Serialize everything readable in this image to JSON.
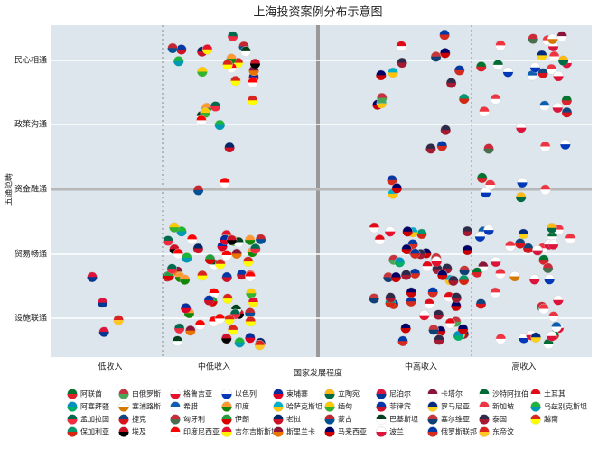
{
  "chart_data": {
    "type": "swarm",
    "title": "上海投资案例分布示意图",
    "x_label": "国家发展程度",
    "y_label": "五通范畴",
    "x_categories": [
      "低收入",
      "中低收入",
      "中高收入",
      "高收入"
    ],
    "y_categories": [
      "民心相通",
      "政策沟通",
      "资金融通",
      "贸易畅通",
      "设施联通"
    ],
    "legend": [
      {
        "name": "阿联酋",
        "colors": [
          "#00732f",
          "#e0202a"
        ]
      },
      {
        "name": "白俄罗斯",
        "colors": [
          "#c8313e",
          "#4aa657"
        ]
      },
      {
        "name": "格鲁吉亚",
        "colors": [
          "#ffffff",
          "#e8112d"
        ]
      },
      {
        "name": "以色列",
        "colors": [
          "#ffffff",
          "#0038b8"
        ]
      },
      {
        "name": "柬埔寨",
        "colors": [
          "#032ea1",
          "#e00025"
        ]
      },
      {
        "name": "立陶宛",
        "colors": [
          "#fdb913",
          "#006a44"
        ]
      },
      {
        "name": "尼泊尔",
        "colors": [
          "#dc143c",
          "#003893"
        ]
      },
      {
        "name": "卡塔尔",
        "colors": [
          "#8a1538",
          "#ffffff"
        ]
      },
      {
        "name": "沙特阿拉伯",
        "colors": [
          "#006c35",
          "#ffffff"
        ]
      },
      {
        "name": "土耳其",
        "colors": [
          "#e30a17",
          "#ffffff"
        ]
      },
      {
        "name": "阿塞拜疆",
        "colors": [
          "#0092bc",
          "#00af66"
        ]
      },
      {
        "name": "塞浦路斯",
        "colors": [
          "#ffffff",
          "#d57800"
        ]
      },
      {
        "name": "希腊",
        "colors": [
          "#0d5eaf",
          "#ffffff"
        ]
      },
      {
        "name": "印度",
        "colors": [
          "#ff9933",
          "#138808"
        ]
      },
      {
        "name": "哈萨克斯坦",
        "colors": [
          "#00afca",
          "#fec50c"
        ]
      },
      {
        "name": "缅甸",
        "colors": [
          "#fecb00",
          "#34b233"
        ]
      },
      {
        "name": "菲律宾",
        "colors": [
          "#0038a8",
          "#ce1126"
        ]
      },
      {
        "name": "罗马尼亚",
        "colors": [
          "#002b7f",
          "#fcd116"
        ]
      },
      {
        "name": "新加坡",
        "colors": [
          "#ef3340",
          "#ffffff"
        ]
      },
      {
        "name": "乌兹别克斯坦",
        "colors": [
          "#1eb53a",
          "#0099b5"
        ]
      },
      {
        "name": "孟加拉国",
        "colors": [
          "#006a4e",
          "#f42a41"
        ]
      },
      {
        "name": "捷克",
        "colors": [
          "#11457e",
          "#d7141a"
        ]
      },
      {
        "name": "匈牙利",
        "colors": [
          "#ce2939",
          "#477050"
        ]
      },
      {
        "name": "伊朗",
        "colors": [
          "#239f40",
          "#da0000"
        ]
      },
      {
        "name": "老挝",
        "colors": [
          "#002868",
          "#ce1126"
        ]
      },
      {
        "name": "蒙古",
        "colors": [
          "#c4272f",
          "#015197"
        ]
      },
      {
        "name": "巴基斯坦",
        "colors": [
          "#01411c",
          "#ffffff"
        ]
      },
      {
        "name": "塞尔维亚",
        "colors": [
          "#c6363c",
          "#0c4076"
        ]
      },
      {
        "name": "泰国",
        "colors": [
          "#2d2a4a",
          "#a51931"
        ]
      },
      {
        "name": "越南",
        "colors": [
          "#da251d",
          "#ffff00"
        ]
      },
      {
        "name": "保加利亚",
        "colors": [
          "#00966e",
          "#d62612"
        ]
      },
      {
        "name": "埃及",
        "colors": [
          "#ce1126",
          "#000000"
        ]
      },
      {
        "name": "印度尼西亚",
        "colors": [
          "#ff0000",
          "#ffffff"
        ]
      },
      {
        "name": "吉尔吉斯斯坦",
        "colors": [
          "#e8112d",
          "#ffef00"
        ]
      },
      {
        "name": "斯里兰卡",
        "colors": [
          "#8d153a",
          "#eb7400"
        ]
      },
      {
        "name": "马来西亚",
        "colors": [
          "#010066",
          "#cc0001"
        ]
      },
      {
        "name": "波兰",
        "colors": [
          "#ffffff",
          "#dc143c"
        ]
      },
      {
        "name": "俄罗斯联邦",
        "colors": [
          "#0039a6",
          "#d52b1e"
        ]
      },
      {
        "name": "东帝汶",
        "colors": [
          "#dc241f",
          "#ffc726"
        ]
      }
    ],
    "cells": [
      {
        "x": "低收入",
        "y": "贸易畅通",
        "countries": [
          "尼泊尔"
        ]
      },
      {
        "x": "低收入",
        "y": "设施联通",
        "countries": [
          "尼泊尔",
          "东帝汶",
          "尼泊尔"
        ]
      },
      {
        "x": "中低收入",
        "y": "民心相通",
        "countries": [
          "越南",
          "印度尼西亚",
          "蒙古",
          "缅甸",
          "孟加拉国",
          "印度",
          "柬埔寨",
          "乌兹别克斯坦",
          "斯里兰卡",
          "越南",
          "印度尼西亚",
          "老挝",
          "巴基斯坦",
          "菲律宾",
          "吉尔吉斯斯坦",
          "埃及",
          "越南",
          "蒙古"
        ]
      },
      {
        "x": "中低收入",
        "y": "政策沟通",
        "countries": [
          "乌兹别克斯坦",
          "印度",
          "越南",
          "巴基斯坦",
          "老挝",
          "孟加拉国",
          "缅甸",
          "印度尼西亚"
        ]
      },
      {
        "x": "中低收入",
        "y": "资金融通",
        "countries": [
          "蒙古",
          "印度尼西亚"
        ]
      },
      {
        "x": "中低收入",
        "y": "贸易畅通",
        "countries": [
          "印度",
          "越南",
          "印度尼西亚",
          "巴基斯坦",
          "孟加拉国",
          "缅甸",
          "柬埔寨",
          "老挝",
          "菲律宾",
          "斯里兰卡",
          "埃及",
          "乌兹别克斯坦",
          "蒙古",
          "吉尔吉斯斯坦",
          "伊朗",
          "印度",
          "越南",
          "印度尼西亚",
          "巴基斯坦",
          "孟加拉国",
          "缅甸",
          "柬埔寨",
          "斯里兰卡",
          "埃及",
          "印度",
          "越南",
          "印度尼西亚",
          "老挝",
          "菲律宾",
          "伊朗",
          "印度",
          "越南",
          "印度尼西亚",
          "乌兹别克斯坦",
          "孟加拉国"
        ]
      },
      {
        "x": "中低收入",
        "y": "设施联通",
        "countries": [
          "越南",
          "印度尼西亚",
          "巴基斯坦",
          "孟加拉国",
          "缅甸",
          "柬埔寨",
          "老挝",
          "埃及",
          "斯里兰卡",
          "蒙古",
          "印度",
          "越南",
          "印度尼西亚",
          "巴基斯坦",
          "孟加拉国",
          "柬埔寨",
          "东帝汶",
          "埃及",
          "吉尔吉斯斯坦",
          "越南",
          "印度尼西亚",
          "乌兹别克斯坦",
          "伊朗",
          "菲律宾",
          "越南",
          "印度尼西亚"
        ]
      },
      {
        "x": "中高收入",
        "y": "民心相通",
        "countries": [
          "马来西亚",
          "俄罗斯联邦",
          "泰国",
          "哈萨克斯坦",
          "土耳其",
          "塞尔维亚",
          "马来西亚",
          "泰国",
          "俄罗斯联邦"
        ]
      },
      {
        "x": "中高收入",
        "y": "政策沟通",
        "countries": [
          "保加利亚",
          "泰国",
          "俄罗斯联邦",
          "马来西亚",
          "哈萨克斯坦",
          "白俄罗斯",
          "泰国"
        ]
      },
      {
        "x": "中高收入",
        "y": "资金融通",
        "countries": [
          "俄罗斯联邦",
          "哈萨克斯坦",
          "马来西亚"
        ]
      },
      {
        "x": "中高收入",
        "y": "贸易畅通",
        "countries": [
          "马来西亚",
          "泰国",
          "俄罗斯联邦",
          "土耳其",
          "哈萨克斯坦",
          "塞尔维亚",
          "保加利亚",
          "白俄罗斯",
          "格鲁吉亚",
          "阿塞拜疆",
          "马来西亚",
          "泰国",
          "俄罗斯联邦",
          "土耳其",
          "哈萨克斯坦",
          "马来西亚",
          "泰国",
          "俄罗斯联邦",
          "塞尔维亚",
          "白俄罗斯",
          "马来西亚",
          "泰国",
          "土耳其",
          "格鲁吉亚",
          "马来西亚",
          "泰国",
          "俄罗斯联邦",
          "保加利亚",
          "马来西亚",
          "泰国"
        ]
      },
      {
        "x": "中高收入",
        "y": "设施联通",
        "countries": [
          "马来西亚",
          "泰国",
          "俄罗斯联邦",
          "土耳其",
          "哈萨克斯坦",
          "塞尔维亚",
          "格鲁吉亚",
          "白俄罗斯",
          "马来西亚",
          "泰国",
          "俄罗斯联邦",
          "土耳其",
          "阿塞拜疆",
          "马来西亚",
          "泰国",
          "俄罗斯联邦",
          "塞尔维亚",
          "马来西亚",
          "泰国",
          "保加利亚",
          "马来西亚",
          "泰国",
          "俄罗斯联邦",
          "土耳其"
        ]
      },
      {
        "x": "高收入",
        "y": "民心相通",
        "countries": [
          "新加坡",
          "以色列",
          "波兰",
          "希腊",
          "捷克",
          "匈牙利",
          "阿联酋",
          "沙特阿拉伯",
          "新加坡",
          "以色列",
          "波兰",
          "卡塔尔",
          "罗马尼亚",
          "新加坡",
          "塞浦路斯",
          "立陶宛",
          "新加坡",
          "波兰"
        ]
      },
      {
        "x": "高收入",
        "y": "政策沟通",
        "countries": [
          "新加坡",
          "波兰",
          "希腊",
          "匈牙利",
          "阿联酋",
          "新加坡",
          "以色列",
          "捷克",
          "新加坡",
          "波兰"
        ]
      },
      {
        "x": "高收入",
        "y": "资金融通",
        "countries": [
          "新加坡",
          "以色列",
          "阿联酋",
          "以色列",
          "立陶宛",
          "新加坡"
        ]
      },
      {
        "x": "高收入",
        "y": "贸易畅通",
        "countries": [
          "新加坡",
          "波兰",
          "以色列",
          "阿联酋",
          "沙特阿拉伯",
          "卡塔尔",
          "匈牙利",
          "捷克",
          "罗马尼亚",
          "希腊",
          "新加坡",
          "波兰",
          "以色列",
          "阿联酋",
          "新加坡",
          "波兰",
          "塞浦路斯",
          "立陶宛",
          "新加坡",
          "波兰",
          "以色列",
          "匈牙利",
          "新加坡",
          "波兰",
          "捷克"
        ]
      },
      {
        "x": "高收入",
        "y": "设施联通",
        "countries": [
          "新加坡",
          "波兰",
          "以色列",
          "阿联酋",
          "沙特阿拉伯",
          "匈牙利",
          "新加坡",
          "波兰",
          "希腊",
          "新加坡",
          "波兰",
          "捷克",
          "新加坡",
          "波兰",
          "罗马尼亚"
        ]
      }
    ]
  }
}
